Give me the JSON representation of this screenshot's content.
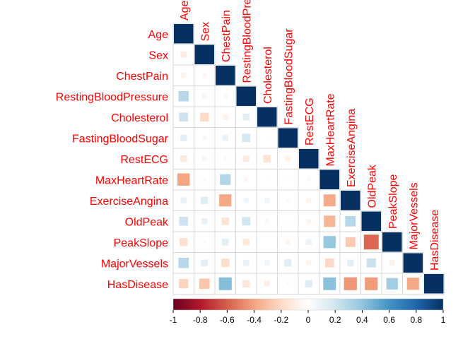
{
  "chart_data": {
    "type": "heatmap",
    "variables": [
      "Age",
      "Sex",
      "ChestPain",
      "RestingBloodPressure",
      "Cholesterol",
      "FastingBloodSugar",
      "RestECG",
      "MaxHeartRate",
      "ExerciseAngina",
      "OldPeak",
      "PeakSlope",
      "MajorVessels",
      "HasDisease"
    ],
    "column_labels": [
      "Age",
      "Sex",
      "ChestPain",
      "RestingBloodPressure",
      "Cholesterol",
      "FastingBloodSugar",
      "RestECG",
      "MaxHeartRate",
      "ExerciseAngina",
      "OldPeak",
      "PeakSlope",
      "MajorVessels",
      "HasDisease"
    ],
    "lower_triangle": [
      [
        1
      ],
      [
        -0.1,
        1
      ],
      [
        -0.07,
        -0.05,
        1
      ],
      [
        0.28,
        -0.06,
        0.05,
        1
      ],
      [
        0.21,
        -0.2,
        -0.08,
        0.12,
        1
      ],
      [
        0.12,
        0.05,
        0.09,
        0.18,
        0.01,
        1
      ],
      [
        -0.12,
        -0.06,
        0.04,
        -0.11,
        -0.15,
        -0.08,
        1
      ],
      [
        -0.4,
        -0.04,
        0.3,
        -0.05,
        -0.01,
        -0.01,
        0.04,
        1
      ],
      [
        0.1,
        0.14,
        -0.39,
        0.07,
        0.07,
        0.03,
        -0.07,
        -0.38,
        1
      ],
      [
        0.21,
        0.1,
        -0.15,
        0.19,
        0.05,
        0.01,
        -0.06,
        -0.34,
        0.29,
        1
      ],
      [
        -0.17,
        -0.03,
        0.12,
        -0.12,
        -0.0,
        -0.06,
        0.09,
        0.39,
        -0.26,
        -0.58,
        1
      ],
      [
        0.28,
        0.12,
        -0.18,
        0.1,
        0.07,
        0.14,
        -0.07,
        -0.21,
        0.12,
        0.22,
        -0.08,
        1
      ],
      [
        -0.23,
        -0.28,
        0.43,
        -0.14,
        -0.09,
        -0.03,
        0.14,
        0.42,
        -0.44,
        -0.43,
        0.35,
        -0.39,
        1
      ]
    ],
    "color_scale": {
      "min": -1,
      "max": 1,
      "ticks": [
        "-1",
        "-0.8",
        "-0.6",
        "-0.4",
        "-0.2",
        "0",
        "0.2",
        "0.4",
        "0.6",
        "0.8",
        "1"
      ],
      "stops": [
        "#67001f",
        "#b2182b",
        "#d6604d",
        "#f4a582",
        "#fddbc7",
        "#ffffff",
        "#d1e5f0",
        "#92c5de",
        "#4393c3",
        "#2166ac",
        "#053061"
      ]
    },
    "label_color": "#ff0000"
  }
}
